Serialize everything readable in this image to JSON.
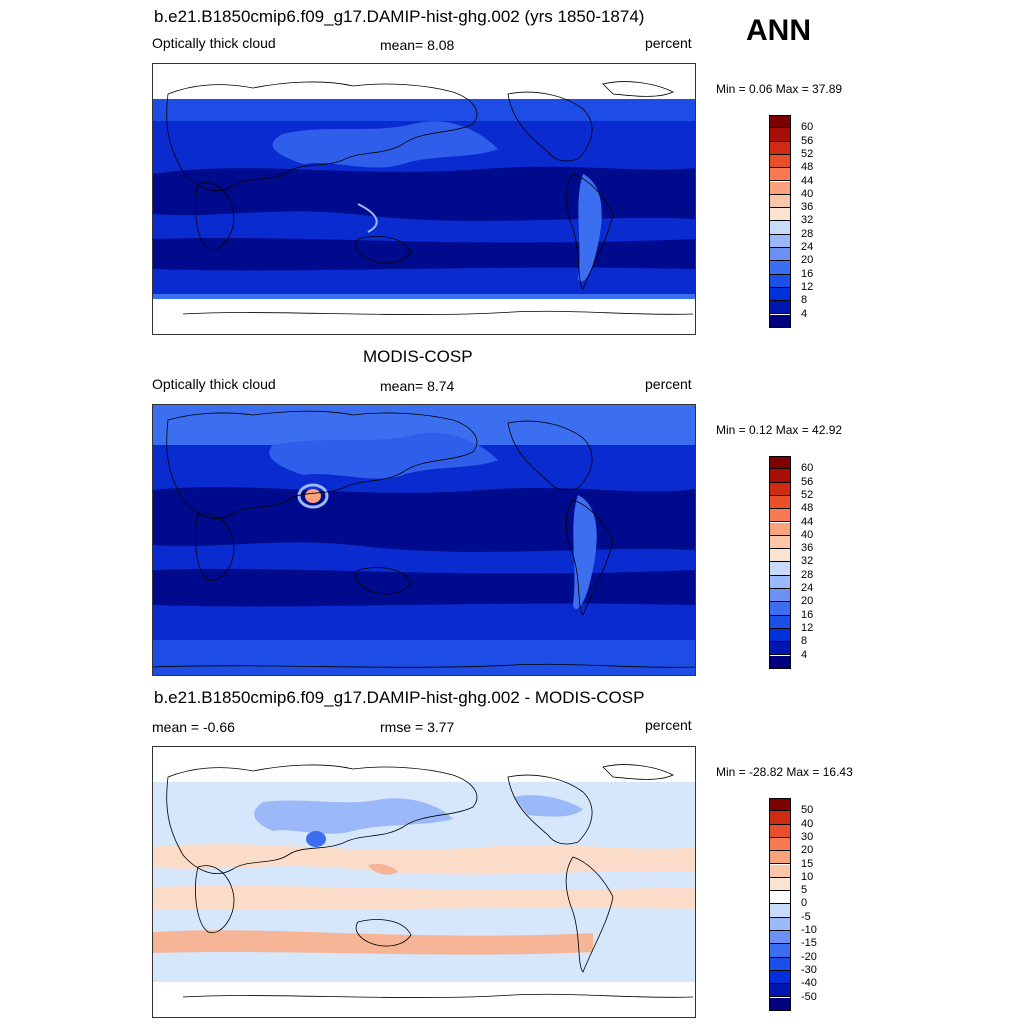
{
  "season": "ANN",
  "panels": [
    {
      "id": "model",
      "title": "b.e21.B1850cmip6.f09_g17.DAMIP-hist-ghg.002 (yrs 1850-1874)",
      "left": "Optically thick cloud",
      "center": "mean=   8.08",
      "right": "percent",
      "minmax": "Min =   0.06 Max =  37.89",
      "colorbar": {
        "colors": [
          "#000080",
          "#0016b0",
          "#0030d8",
          "#1a4fe8",
          "#3c6ff0",
          "#6a92f5",
          "#9bb8f8",
          "#c9dbfb",
          "#fbe3d2",
          "#fcc7a8",
          "#fba27c",
          "#f77a52",
          "#ea4f2c",
          "#cf2a12",
          "#a70e05",
          "#7d0000"
        ],
        "labels": [
          "4",
          "8",
          "12",
          "16",
          "20",
          "24",
          "28",
          "32",
          "36",
          "40",
          "44",
          "48",
          "52",
          "56",
          "60"
        ]
      }
    },
    {
      "id": "obs",
      "title": "MODIS-COSP",
      "left": "Optically thick cloud",
      "center": "mean=   8.74",
      "right": "percent",
      "minmax": "Min =   0.12 Max =  42.92",
      "colorbar": {
        "colors": [
          "#000080",
          "#0016b0",
          "#0030d8",
          "#1a4fe8",
          "#3c6ff0",
          "#6a92f5",
          "#9bb8f8",
          "#c9dbfb",
          "#fbe3d2",
          "#fcc7a8",
          "#fba27c",
          "#f77a52",
          "#ea4f2c",
          "#cf2a12",
          "#a70e05",
          "#7d0000"
        ],
        "labels": [
          "4",
          "8",
          "12",
          "16",
          "20",
          "24",
          "28",
          "32",
          "36",
          "40",
          "44",
          "48",
          "52",
          "56",
          "60"
        ]
      }
    },
    {
      "id": "diff",
      "title": "b.e21.B1850cmip6.f09_g17.DAMIP-hist-ghg.002 - MODIS-COSP",
      "left": "mean =  -0.66",
      "center": "rmse =    3.77",
      "right": "percent",
      "minmax": "Min = -28.82 Max =  16.43",
      "colorbar": {
        "colors": [
          "#000080",
          "#0016b0",
          "#0030d8",
          "#1a4fe8",
          "#3c6ff0",
          "#6a92f5",
          "#9bb8f8",
          "#c9dbfb",
          "#ffffff",
          "#fbe3d2",
          "#fcc7a8",
          "#fba27c",
          "#f77a52",
          "#ea4f2c",
          "#cf2a12",
          "#7d0000"
        ],
        "labels": [
          "-50",
          "-40",
          "-30",
          "-20",
          "-15",
          "-10",
          "-5",
          "0",
          "5",
          "10",
          "15",
          "20",
          "30",
          "40",
          "50"
        ]
      }
    }
  ],
  "palette": {
    "deep_blue": "#000a8c",
    "mid_blue": "#0a2bd0",
    "light_blue": "#3c6ff0",
    "diff_neg": "#d6e6fb",
    "diff_pos": "#fbdcc8",
    "diff_pos_strong": "#f5b596"
  }
}
